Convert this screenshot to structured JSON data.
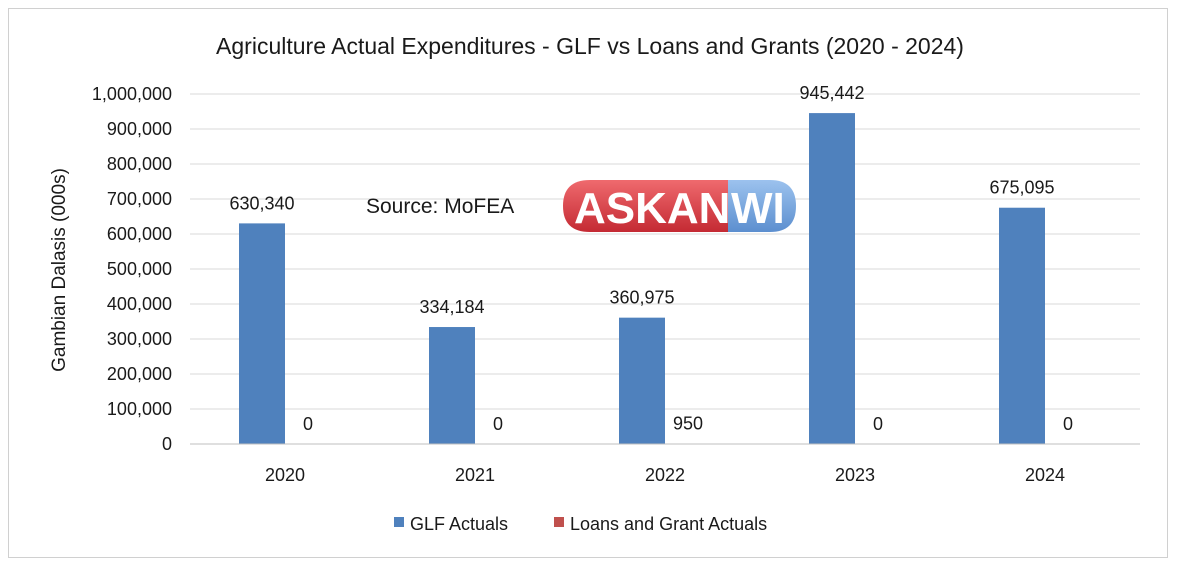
{
  "chart_data": {
    "type": "bar",
    "title": "Agriculture Actual Expenditures - GLF vs Loans and Grants (2020 - 2024)",
    "ylabel": "Gambian Dalasis (000s)",
    "xlabel": "",
    "categories": [
      "2020",
      "2021",
      "2022",
      "2023",
      "2024"
    ],
    "series": [
      {
        "name": "GLF Actuals",
        "color": "#4f81bd",
        "values": [
          630340,
          334184,
          360975,
          945442,
          675095
        ],
        "labels": [
          "630,340",
          "334,184",
          "360,975",
          "945,442",
          "675,095"
        ]
      },
      {
        "name": "Loans and Grant Actuals",
        "color": "#c0504d",
        "values": [
          0,
          0,
          950,
          0,
          0
        ],
        "labels": [
          "0",
          "0",
          "950",
          "0",
          "0"
        ]
      }
    ],
    "ylim": [
      0,
      1000000
    ],
    "yticks": [
      0,
      100000,
      200000,
      300000,
      400000,
      500000,
      600000,
      700000,
      800000,
      900000,
      1000000
    ],
    "ytick_labels": [
      "0",
      "100,000",
      "200,000",
      "300,000",
      "400,000",
      "500,000",
      "600,000",
      "700,000",
      "800,000",
      "900,000",
      "1,000,000"
    ],
    "grid": true,
    "legend": "bottom"
  },
  "annotations": {
    "source": "Source: MoFEA"
  },
  "logo": {
    "part1": "ASKAN",
    "part2": "WI",
    "colors": {
      "red": "#d9363e",
      "blue": "#6d9fd8"
    }
  }
}
